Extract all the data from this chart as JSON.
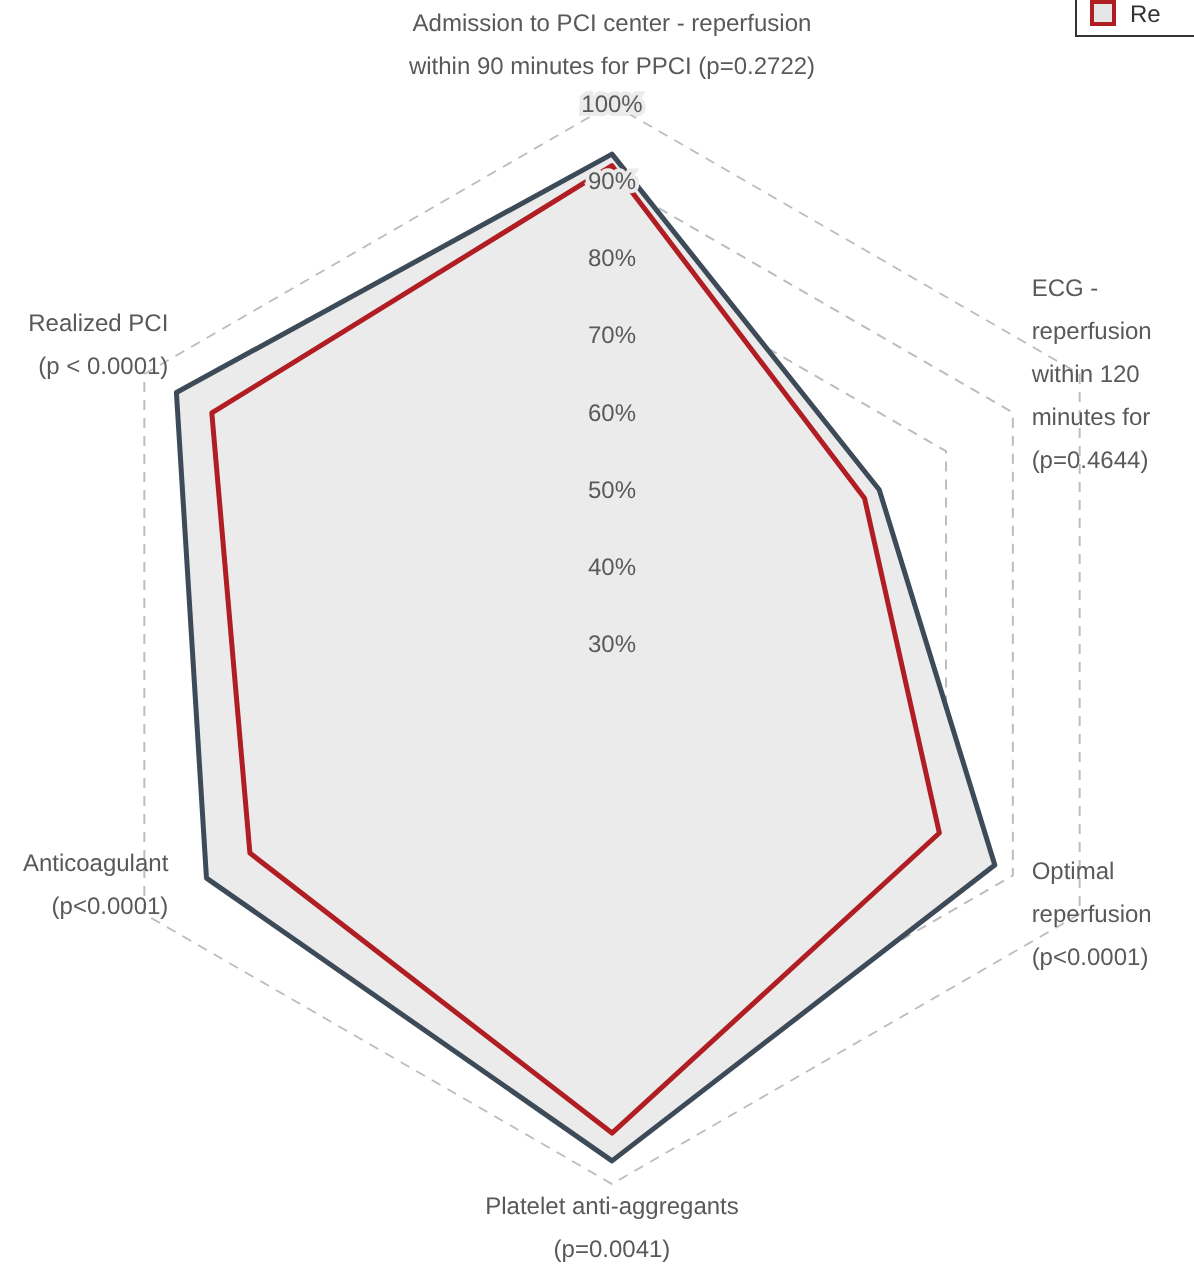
{
  "chart_data": {
    "type": "radar",
    "categories": [
      "Admission to PCI center - reperfusion\nwithin 90 minutes for PPCI (p=0.2722)",
      "ECG -\nreperfusion\nwithin 120\nminutes for\n(p=0.4644)",
      "Optimal\nreperfusion\n(p<0.0001)",
      "Platelet anti-aggregants\n(p=0.0041)",
      "Anticoagulant\n(p<0.0001)",
      "Realized PCI\n(p < 0.0001)"
    ],
    "series": [
      {
        "color": "#3d4a58",
        "values": [
          93.5,
          70,
          87.3,
          97,
          90.7,
          95.2
        ]
      },
      {
        "name": "Re",
        "color": "#b01e23",
        "values": [
          92,
          67.8,
          79,
          93.4,
          84.2,
          89.9
        ]
      }
    ],
    "ylim": [
      30,
      100
    ],
    "yticks": [
      {
        "value": 30,
        "label": "30%"
      },
      {
        "value": 40,
        "label": "40%"
      },
      {
        "value": 50,
        "label": "50%"
      },
      {
        "value": 60,
        "label": "60%"
      },
      {
        "value": 70,
        "label": "70%"
      },
      {
        "value": 80,
        "label": "80%"
      },
      {
        "value": 90,
        "label": "90%"
      },
      {
        "value": 100,
        "label": "100%"
      }
    ],
    "grid": true,
    "legend": "top right"
  }
}
